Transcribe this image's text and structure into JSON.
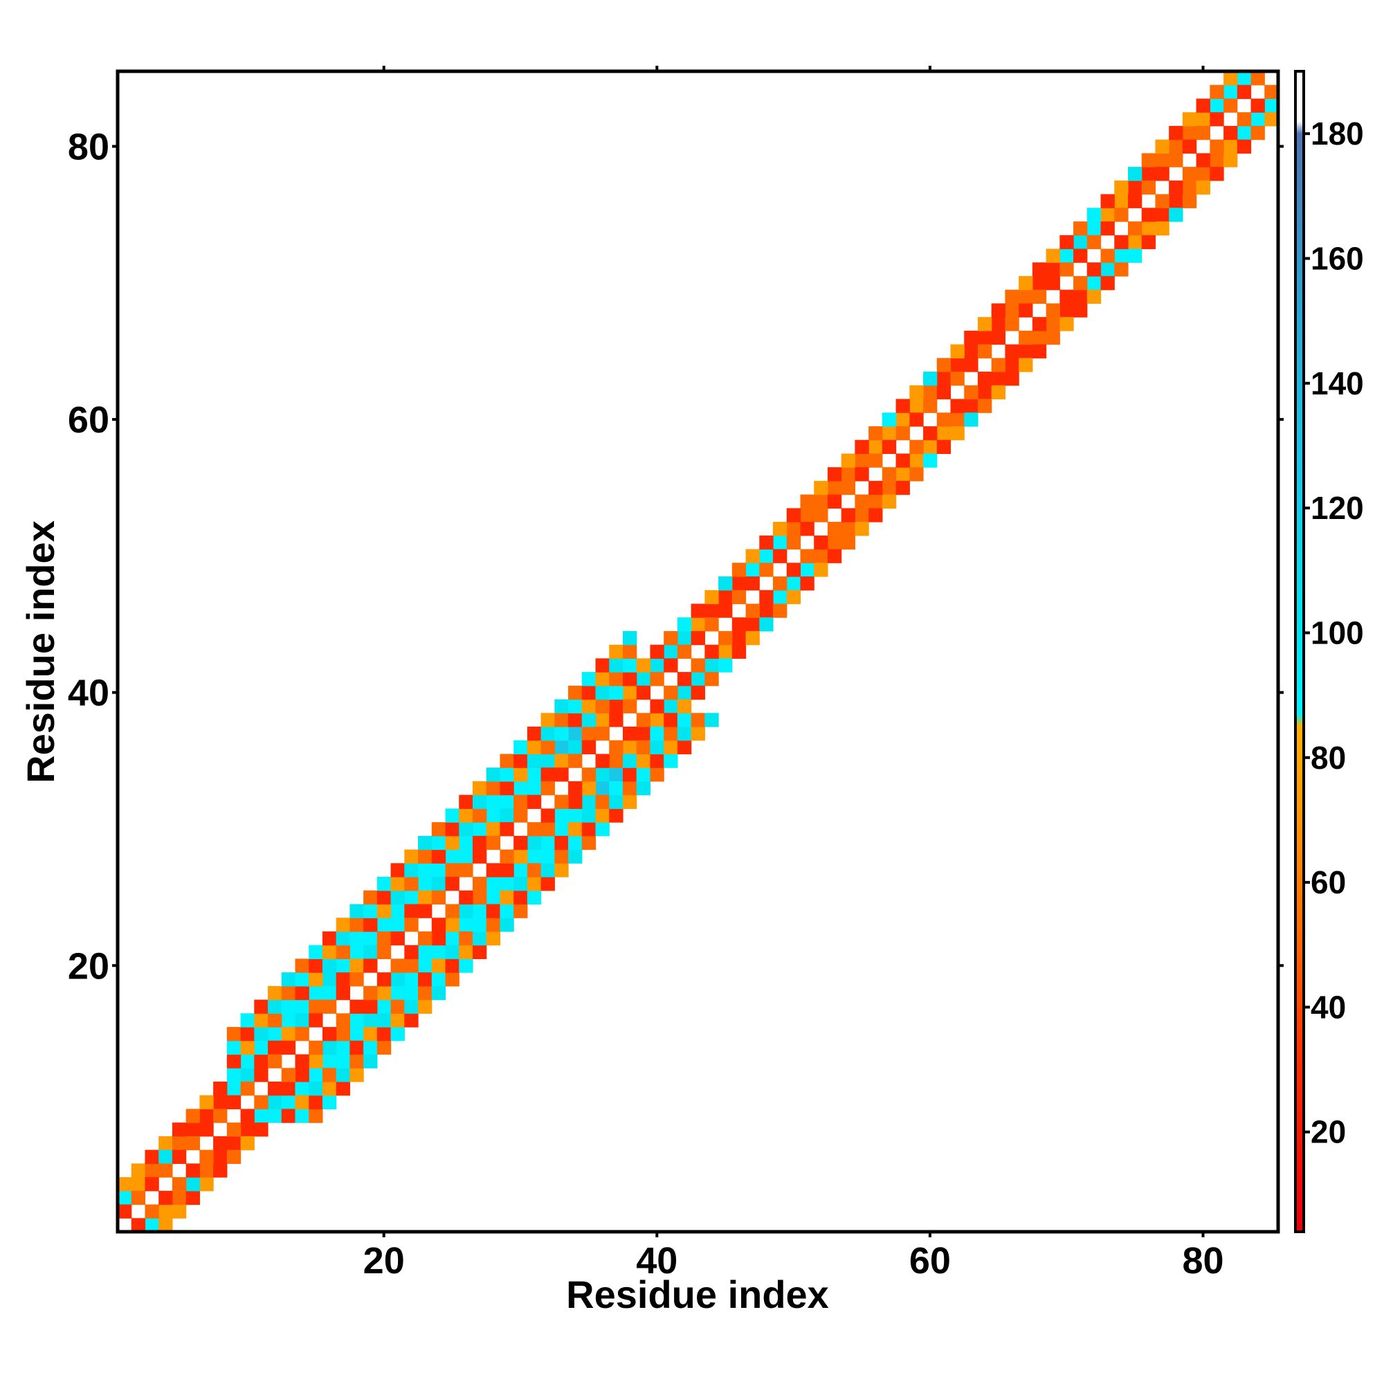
{
  "chart_data": {
    "type": "heatmap",
    "title": "",
    "xlabel": "Residue index",
    "ylabel": "Residue index",
    "xlim": [
      0.5,
      85.5
    ],
    "ylim": [
      0.5,
      85.5
    ],
    "x_ticks": [
      20,
      40,
      60,
      80
    ],
    "y_ticks": [
      20,
      40,
      60,
      80
    ],
    "x_tick_labels": [
      "20",
      "40",
      "60",
      "80"
    ],
    "y_tick_labels": [
      "20",
      "40",
      "60",
      "80"
    ],
    "grid": false,
    "legend": "colorbar-right",
    "colorbar": {
      "min": 4,
      "max": 190,
      "ticks": [
        20,
        40,
        60,
        80,
        100,
        120,
        140,
        160,
        180
      ],
      "tick_labels": [
        "20",
        "40",
        "60",
        "80",
        "100",
        "120",
        "140",
        "160",
        "180"
      ],
      "stops": [
        {
          "value": 4,
          "color": "#e8000b"
        },
        {
          "value": 30,
          "color": "#ff2a00"
        },
        {
          "value": 52,
          "color": "#ff6a00"
        },
        {
          "value": 72,
          "color": "#ff9a00"
        },
        {
          "value": 85,
          "color": "#ffb000"
        },
        {
          "value": 87,
          "color": "#00f2ff"
        },
        {
          "value": 100,
          "color": "#00e5f0"
        },
        {
          "value": 125,
          "color": "#19c8e6"
        },
        {
          "value": 150,
          "color": "#2aa8d6"
        },
        {
          "value": 180,
          "color": "#4f73b3"
        },
        {
          "value": 182,
          "color": "#ffffff"
        },
        {
          "value": 190,
          "color": "#ffffff"
        }
      ]
    },
    "cell_values": [
      {
        "i": 1,
        "j": 3,
        "v": 95
      },
      {
        "i": 1,
        "j": 4,
        "v": 75
      },
      {
        "i": 2,
        "j": 4,
        "v": 75
      },
      {
        "i": 2,
        "j": 5,
        "v": 75
      },
      {
        "i": 3,
        "j": 5,
        "v": 55
      },
      {
        "i": 3,
        "j": 6,
        "v": 30
      },
      {
        "i": 4,
        "j": 7,
        "v": 75
      },
      {
        "i": 5,
        "j": 7,
        "v": 55
      },
      {
        "i": 6,
        "j": 8,
        "v": 30
      },
      {
        "i": 7,
        "j": 9,
        "v": 30
      },
      {
        "i": 8,
        "j": 10,
        "v": 30
      },
      {
        "i": 9,
        "j": 11,
        "v": 95
      },
      {
        "i": 9,
        "j": 12,
        "v": 95
      },
      {
        "i": 10,
        "j": 12,
        "v": 120
      },
      {
        "i": 10,
        "j": 13,
        "v": 95
      },
      {
        "i": 11,
        "j": 13,
        "v": 30
      },
      {
        "i": 11,
        "j": 14,
        "v": 95
      },
      {
        "i": 12,
        "j": 15,
        "v": 95
      },
      {
        "i": 13,
        "j": 16,
        "v": 95
      },
      {
        "i": 14,
        "j": 17,
        "v": 95
      },
      {
        "i": 15,
        "j": 18,
        "v": 95
      },
      {
        "i": 16,
        "j": 19,
        "v": 120
      },
      {
        "i": 17,
        "j": 20,
        "v": 95
      },
      {
        "i": 18,
        "j": 21,
        "v": 95
      },
      {
        "i": 19,
        "j": 22,
        "v": 95
      },
      {
        "i": 20,
        "j": 23,
        "v": 95
      },
      {
        "i": 21,
        "j": 24,
        "v": 95
      },
      {
        "i": 22,
        "j": 25,
        "v": 95
      },
      {
        "i": 23,
        "j": 26,
        "v": 95
      },
      {
        "i": 24,
        "j": 27,
        "v": 95
      },
      {
        "i": 25,
        "j": 28,
        "v": 95
      },
      {
        "i": 26,
        "j": 29,
        "v": 95
      },
      {
        "i": 27,
        "j": 30,
        "v": 95
      },
      {
        "i": 28,
        "j": 31,
        "v": 95
      },
      {
        "i": 29,
        "j": 32,
        "v": 95
      },
      {
        "i": 30,
        "j": 33,
        "v": 95
      },
      {
        "i": 31,
        "j": 34,
        "v": 95
      },
      {
        "i": 32,
        "j": 35,
        "v": 120
      },
      {
        "i": 33,
        "j": 36,
        "v": 145
      },
      {
        "i": 34,
        "j": 37,
        "v": 145
      },
      {
        "i": 35,
        "j": 37,
        "v": 55
      },
      {
        "i": 36,
        "j": 38,
        "v": 75
      },
      {
        "i": 37,
        "j": 39,
        "v": 30
      },
      {
        "i": 38,
        "j": 40,
        "v": 75
      },
      {
        "i": 39,
        "j": 41,
        "v": 120
      },
      {
        "i": 40,
        "j": 42,
        "v": 120
      },
      {
        "i": 41,
        "j": 43,
        "v": 120
      },
      {
        "i": 42,
        "j": 44,
        "v": 120
      },
      {
        "i": 43,
        "j": 45,
        "v": 75
      },
      {
        "i": 44,
        "j": 46,
        "v": 30
      },
      {
        "i": 45,
        "j": 47,
        "v": 30
      },
      {
        "i": 46,
        "j": 48,
        "v": 30
      },
      {
        "i": 47,
        "j": 49,
        "v": 95
      },
      {
        "i": 48,
        "j": 50,
        "v": 95
      },
      {
        "i": 49,
        "j": 51,
        "v": 95
      },
      {
        "i": 50,
        "j": 52,
        "v": 55
      },
      {
        "i": 51,
        "j": 53,
        "v": 55
      },
      {
        "i": 52,
        "j": 54,
        "v": 55
      },
      {
        "i": 53,
        "j": 55,
        "v": 55
      },
      {
        "i": 54,
        "j": 56,
        "v": 55
      },
      {
        "i": 55,
        "j": 57,
        "v": 55
      },
      {
        "i": 56,
        "j": 58,
        "v": 75
      },
      {
        "i": 57,
        "j": 59,
        "v": 75
      },
      {
        "i": 58,
        "j": 60,
        "v": 75
      },
      {
        "i": 59,
        "j": 61,
        "v": 75
      },
      {
        "i": 60,
        "j": 62,
        "v": 55
      },
      {
        "i": 61,
        "j": 63,
        "v": 30
      },
      {
        "i": 62,
        "j": 64,
        "v": 30
      },
      {
        "i": 63,
        "j": 65,
        "v": 30
      },
      {
        "i": 64,
        "j": 66,
        "v": 30
      },
      {
        "i": 65,
        "j": 67,
        "v": 30
      },
      {
        "i": 66,
        "j": 68,
        "v": 55
      },
      {
        "i": 67,
        "j": 69,
        "v": 55
      },
      {
        "i": 68,
        "j": 70,
        "v": 30
      },
      {
        "i": 69,
        "j": 71,
        "v": 30
      },
      {
        "i": 70,
        "j": 72,
        "v": 95
      },
      {
        "i": 71,
        "j": 73,
        "v": 120
      },
      {
        "i": 72,
        "j": 74,
        "v": 95
      },
      {
        "i": 73,
        "j": 75,
        "v": 75
      },
      {
        "i": 74,
        "j": 76,
        "v": 75
      },
      {
        "i": 75,
        "j": 77,
        "v": 30
      },
      {
        "i": 76,
        "j": 78,
        "v": 30
      },
      {
        "i": 77,
        "j": 79,
        "v": 55
      },
      {
        "i": 78,
        "j": 80,
        "v": 55
      },
      {
        "i": 79,
        "j": 81,
        "v": 55
      },
      {
        "i": 80,
        "j": 82,
        "v": 75
      },
      {
        "i": 81,
        "j": 83,
        "v": 95
      },
      {
        "i": 82,
        "j": 84,
        "v": 95
      },
      {
        "i": 83,
        "j": 85,
        "v": 95
      }
    ],
    "bands": [
      {
        "start": 1,
        "end": 8,
        "width": 3
      },
      {
        "start": 9,
        "end": 38,
        "width": 6
      },
      {
        "start": 39,
        "end": 55,
        "width": 3
      },
      {
        "start": 56,
        "end": 85,
        "width": 3
      }
    ]
  }
}
